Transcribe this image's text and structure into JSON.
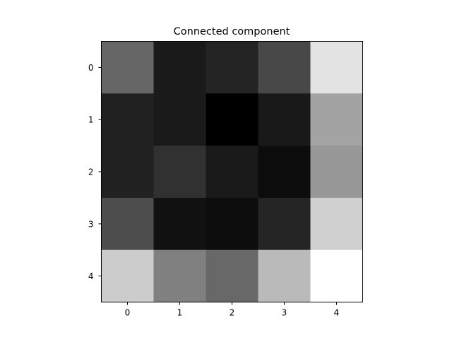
{
  "chart_data": {
    "type": "heatmap",
    "title": "Connected component",
    "colormap": "gray",
    "vmin": 0,
    "vmax": 255,
    "x_ticks": [
      "0",
      "1",
      "2",
      "3",
      "4"
    ],
    "y_ticks": [
      "0",
      "1",
      "2",
      "3",
      "4"
    ],
    "values": [
      [
        102,
        26,
        36,
        72,
        227
      ],
      [
        33,
        26,
        0,
        25,
        163
      ],
      [
        33,
        49,
        26,
        12,
        152
      ],
      [
        77,
        17,
        13,
        37,
        208
      ],
      [
        204,
        128,
        104,
        186,
        255
      ]
    ]
  }
}
